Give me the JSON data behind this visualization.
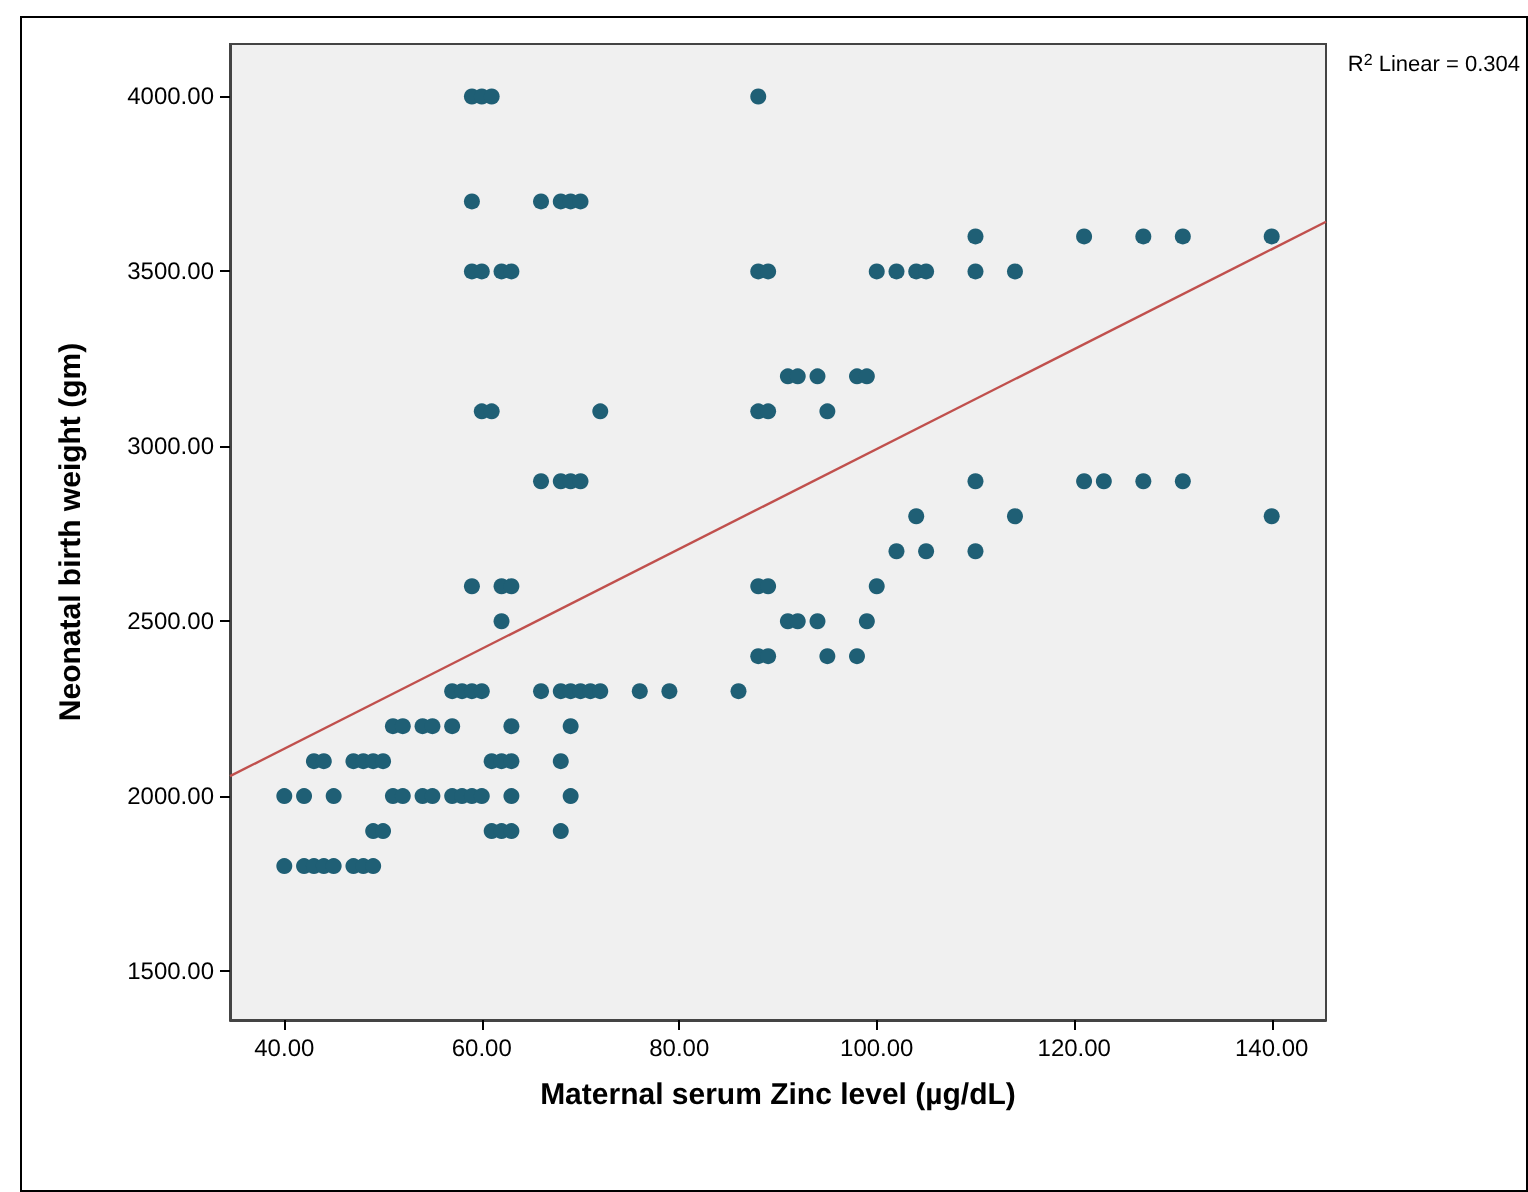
{
  "chart_data": {
    "type": "scatter",
    "xlabel": "Maternal serum Zinc level (µg/dL)",
    "ylabel": "Neonatal birth weight (gm)",
    "annotations": [
      "R$^{2}$ Linear = 0.304"
    ],
    "xlim": [
      34.5,
      145.5
    ],
    "ylim": [
      1360,
      4150
    ],
    "xticks": [
      {
        "value": 40,
        "label": "40.00"
      },
      {
        "value": 60,
        "label": "60.00"
      },
      {
        "value": 80,
        "label": "80.00"
      },
      {
        "value": 100,
        "label": "100.00"
      },
      {
        "value": 120,
        "label": "120.00"
      },
      {
        "value": 140,
        "label": "140.00"
      }
    ],
    "yticks": [
      {
        "value": 1500,
        "label": "1500.00"
      },
      {
        "value": 2000,
        "label": "2000.00"
      },
      {
        "value": 2500,
        "label": "2500.00"
      },
      {
        "value": 3000,
        "label": "3000.00"
      },
      {
        "value": 3500,
        "label": "3500.00"
      },
      {
        "value": 4000,
        "label": "4000.00"
      }
    ],
    "grid": false,
    "marker": "circle",
    "series": [
      {
        "color": "#1f5f75",
        "x": [
          59,
          60,
          61,
          88,
          59,
          66,
          68,
          69,
          70,
          110,
          121,
          127,
          131,
          140,
          59,
          60,
          62,
          63,
          88,
          89,
          100,
          102,
          104,
          105,
          110,
          114,
          91,
          92,
          94,
          98,
          99,
          60,
          61,
          72,
          88,
          89,
          95,
          66,
          68,
          69,
          70,
          110,
          121,
          123,
          127,
          131,
          104,
          114,
          140,
          102,
          105,
          110,
          59,
          62,
          63,
          88,
          89,
          100,
          62,
          91,
          92,
          94,
          99,
          88,
          89,
          95,
          98,
          57,
          58,
          59,
          60,
          66,
          68,
          69,
          70,
          71,
          72,
          76,
          79,
          86,
          51,
          52,
          54,
          55,
          57,
          63,
          69,
          43,
          44,
          47,
          48,
          49,
          50,
          61,
          62,
          63,
          68,
          40,
          42,
          45,
          51,
          52,
          54,
          55,
          57,
          58,
          59,
          60,
          63,
          69,
          49,
          50,
          61,
          62,
          63,
          68,
          40,
          42,
          43,
          44,
          45,
          47,
          48,
          49
        ],
        "values": [
          4000,
          4000,
          4000,
          4000,
          3700,
          3700,
          3700,
          3700,
          3700,
          3600,
          3600,
          3600,
          3600,
          3600,
          3500,
          3500,
          3500,
          3500,
          3500,
          3500,
          3500,
          3500,
          3500,
          3500,
          3500,
          3500,
          3200,
          3200,
          3200,
          3200,
          3200,
          3100,
          3100,
          3100,
          3100,
          3100,
          3100,
          2900,
          2900,
          2900,
          2900,
          2900,
          2900,
          2900,
          2900,
          2900,
          2800,
          2800,
          2800,
          2700,
          2700,
          2700,
          2600,
          2600,
          2600,
          2600,
          2600,
          2600,
          2500,
          2500,
          2500,
          2500,
          2500,
          2400,
          2400,
          2400,
          2400,
          2300,
          2300,
          2300,
          2300,
          2300,
          2300,
          2300,
          2300,
          2300,
          2300,
          2300,
          2300,
          2300,
          2200,
          2200,
          2200,
          2200,
          2200,
          2200,
          2200,
          2100,
          2100,
          2100,
          2100,
          2100,
          2100,
          2100,
          2100,
          2100,
          2100,
          2000,
          2000,
          2000,
          2000,
          2000,
          2000,
          2000,
          2000,
          2000,
          2000,
          2000,
          2000,
          2000,
          1900,
          1900,
          1900,
          1900,
          1900,
          1900,
          1800,
          1800,
          1800,
          1800,
          1800,
          1800,
          1800,
          1800
        ]
      },
      {
        "type": "line",
        "color": "#c0504d",
        "marker": "none",
        "line_style": "solid",
        "x": [
          34.5,
          145.5
        ],
        "values": [
          2057,
          3642
        ]
      }
    ]
  }
}
